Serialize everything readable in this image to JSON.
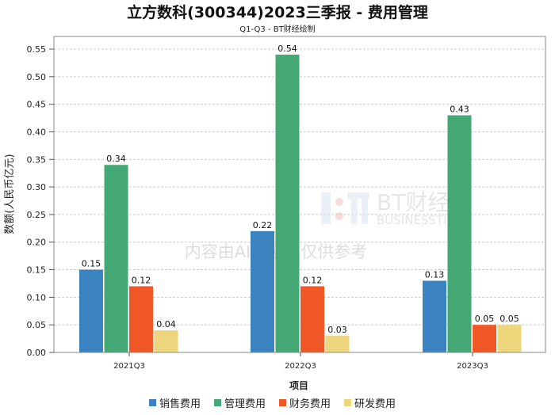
{
  "chart_data": {
    "type": "bar",
    "title": "立方数科(300344)2023三季报 - 费用管理",
    "subtitle": "Q1-Q3 - BT财经绘制",
    "xlabel": "项目",
    "ylabel": "数额(人民币亿元)",
    "categories": [
      "2021Q3",
      "2022Q3",
      "2023Q3"
    ],
    "series": [
      {
        "name": "销售费用",
        "color": "#3a83c0",
        "values": [
          0.15,
          0.22,
          0.13
        ]
      },
      {
        "name": "管理费用",
        "color": "#43a874",
        "values": [
          0.34,
          0.54,
          0.43
        ]
      },
      {
        "name": "财务费用",
        "color": "#f05727",
        "values": [
          0.12,
          0.12,
          0.05
        ]
      },
      {
        "name": "研发费用",
        "color": "#ecd57a",
        "values": [
          0.04,
          0.03,
          0.05
        ]
      }
    ],
    "ylim": [
      0,
      0.55
    ],
    "yticks": [
      "0.00",
      "0.05",
      "0.10",
      "0.15",
      "0.20",
      "0.25",
      "0.30",
      "0.35",
      "0.40",
      "0.45",
      "0.50",
      "0.55"
    ],
    "grid": true,
    "legend_position": "bottom"
  },
  "watermark": {
    "logo_text": "BT财经",
    "logo_sub": "BUSINESSTIMES",
    "notice": "内容由AI生成，仅供参考"
  }
}
